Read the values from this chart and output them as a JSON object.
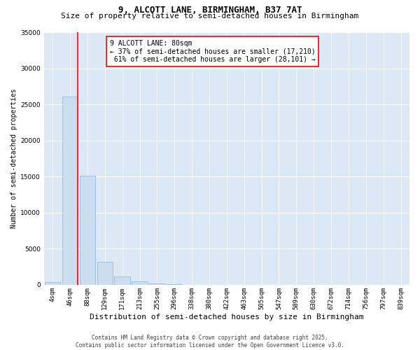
{
  "title": "9, ALCOTT LANE, BIRMINGHAM, B37 7AT",
  "subtitle": "Size of property relative to semi-detached houses in Birmingham",
  "xlabel": "Distribution of semi-detached houses by size in Birmingham",
  "ylabel": "Number of semi-detached properties",
  "bin_labels": [
    "4sqm",
    "46sqm",
    "88sqm",
    "129sqm",
    "171sqm",
    "213sqm",
    "255sqm",
    "296sqm",
    "338sqm",
    "380sqm",
    "422sqm",
    "463sqm",
    "505sqm",
    "547sqm",
    "589sqm",
    "630sqm",
    "672sqm",
    "714sqm",
    "756sqm",
    "797sqm",
    "839sqm"
  ],
  "bar_values": [
    350,
    26100,
    15100,
    3200,
    1200,
    450,
    200,
    50,
    0,
    0,
    0,
    0,
    0,
    0,
    0,
    0,
    0,
    0,
    0,
    0,
    0
  ],
  "bar_color": "#ccddf0",
  "bar_edge_color": "#8ab4d8",
  "vline_x_index": 1,
  "annotation_text": "9 ALCOTT LANE: 80sqm\n← 37% of semi-detached houses are smaller (17,210)\n 61% of semi-detached houses are larger (28,101) →",
  "annotation_box_color": "white",
  "annotation_box_edge_color": "red",
  "vline_color": "red",
  "ylim": [
    0,
    35000
  ],
  "yticks": [
    0,
    5000,
    10000,
    15000,
    20000,
    25000,
    30000,
    35000
  ],
  "background_color": "#dce8f5",
  "footer_text": "Contains HM Land Registry data © Crown copyright and database right 2025.\nContains public sector information licensed under the Open Government Licence v3.0.",
  "title_fontsize": 9,
  "subtitle_fontsize": 8,
  "xlabel_fontsize": 8,
  "ylabel_fontsize": 7,
  "tick_fontsize": 6.5,
  "annotation_fontsize": 7,
  "footer_fontsize": 5.5
}
